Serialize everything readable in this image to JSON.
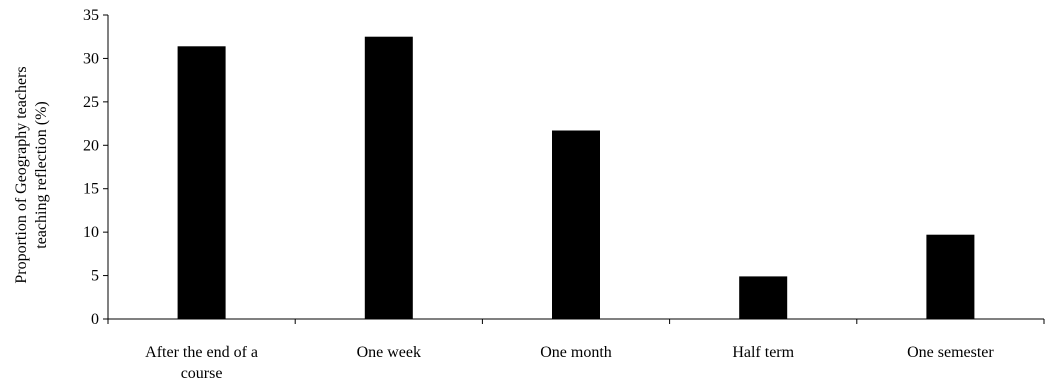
{
  "chart_data": {
    "type": "bar",
    "title": "",
    "xlabel": "",
    "ylabel_lines": [
      "Proportion of Geography teachers",
      "teaching reflection (%)"
    ],
    "categories": [
      [
        "After the end of a",
        "course"
      ],
      [
        "One week"
      ],
      [
        "One month"
      ],
      [
        "Half term"
      ],
      [
        "One semester"
      ]
    ],
    "values": [
      31.4,
      32.5,
      21.7,
      4.9,
      9.7
    ],
    "ylim": [
      0,
      35
    ],
    "yticks": [
      0,
      5,
      10,
      15,
      20,
      25,
      30,
      35
    ],
    "grid": false,
    "legend": "none",
    "bar_color": "#000000"
  }
}
